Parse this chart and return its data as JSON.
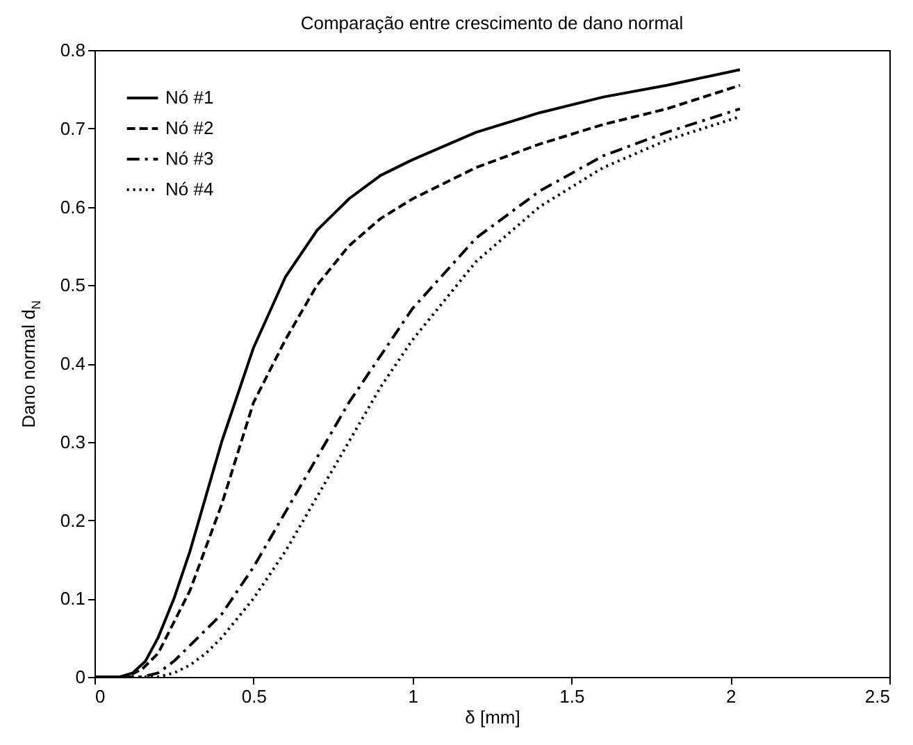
{
  "chart_data": {
    "type": "line",
    "title": "Comparação entre crescimento de dano normal",
    "xlabel": "δ [mm]",
    "ylabel": "Dano normal d$_{N}$",
    "xlim": [
      0,
      2.5
    ],
    "xticks": [
      0,
      0.5,
      1,
      1.5,
      2,
      2.5
    ],
    "ylim": [
      0,
      0.8
    ],
    "yticks": [
      0,
      0.1,
      0.2,
      0.3,
      0.4,
      0.5,
      0.6,
      0.7,
      0.8
    ],
    "grid": false,
    "legend": "top left",
    "marker": "none",
    "series": [
      {
        "name": "Nó #1",
        "color": "#000000",
        "line_style": "solid",
        "x": [
          0,
          0.08,
          0.12,
          0.16,
          0.2,
          0.25,
          0.3,
          0.35,
          0.4,
          0.5,
          0.6,
          0.7,
          0.8,
          0.9,
          1.0,
          1.2,
          1.4,
          1.6,
          1.8,
          2.03
        ],
        "values": [
          0,
          0,
          0.005,
          0.02,
          0.05,
          0.1,
          0.16,
          0.23,
          0.3,
          0.42,
          0.51,
          0.57,
          0.61,
          0.64,
          0.66,
          0.695,
          0.72,
          0.74,
          0.755,
          0.775
        ]
      },
      {
        "name": "Nó #2",
        "color": "#000000",
        "line_style": "dashed",
        "x": [
          0,
          0.1,
          0.15,
          0.2,
          0.25,
          0.3,
          0.4,
          0.5,
          0.6,
          0.7,
          0.8,
          0.9,
          1.0,
          1.2,
          1.4,
          1.6,
          1.8,
          2.03
        ],
        "values": [
          0,
          0,
          0.01,
          0.03,
          0.07,
          0.11,
          0.22,
          0.35,
          0.43,
          0.5,
          0.55,
          0.585,
          0.61,
          0.65,
          0.68,
          0.705,
          0.725,
          0.755
        ]
      },
      {
        "name": "Nó #3",
        "color": "#000000",
        "line_style": "dashdot",
        "x": [
          0,
          0.15,
          0.2,
          0.25,
          0.3,
          0.4,
          0.5,
          0.6,
          0.7,
          0.8,
          0.9,
          1.0,
          1.2,
          1.4,
          1.6,
          1.8,
          2.03
        ],
        "values": [
          0,
          0,
          0.005,
          0.02,
          0.04,
          0.08,
          0.14,
          0.21,
          0.28,
          0.35,
          0.41,
          0.47,
          0.56,
          0.62,
          0.665,
          0.695,
          0.725
        ]
      },
      {
        "name": "Nó #4",
        "color": "#000000",
        "line_style": "dotted",
        "x": [
          0,
          0.2,
          0.25,
          0.3,
          0.35,
          0.4,
          0.5,
          0.6,
          0.7,
          0.8,
          0.9,
          1.0,
          1.2,
          1.4,
          1.6,
          1.8,
          2.03
        ],
        "values": [
          0,
          0,
          0.005,
          0.015,
          0.03,
          0.05,
          0.1,
          0.16,
          0.23,
          0.3,
          0.37,
          0.43,
          0.53,
          0.6,
          0.65,
          0.685,
          0.715
        ]
      }
    ]
  }
}
